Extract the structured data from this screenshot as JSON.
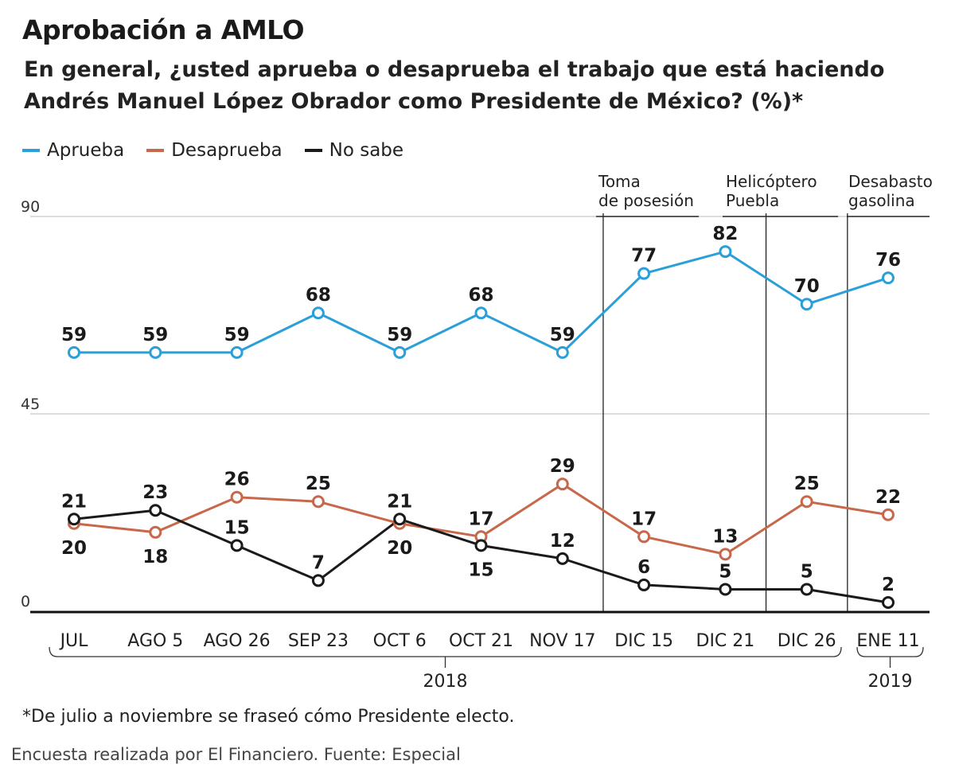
{
  "header": {
    "title": "Aprobación a AMLO",
    "subtitle_line1": "En general, ¿usted aprueba o desaprueba el trabajo que está haciendo",
    "subtitle_line2": "Andrés Manuel López Obrador como Presidente de México? (%)*"
  },
  "footer": {
    "footnote": "*De julio a noviembre se fraseó cómo Presidente electo.",
    "source": "Encuesta realizada por El Financiero. Fuente: Especial"
  },
  "colors": {
    "aprueba": "#2a9fd8",
    "desaprueba": "#c8684a",
    "nosabe": "#1a1a1a",
    "grid": "#bbbbbb"
  },
  "chart_data": {
    "type": "line",
    "categories": [
      "JUL",
      "AGO 5",
      "AGO 26",
      "SEP 23",
      "OCT 6",
      "OCT 21",
      "NOV 17",
      "DIC 15",
      "DIC 21",
      "DIC 26",
      "ENE 11"
    ],
    "series": [
      {
        "name": "Aprueba",
        "values": [
          59,
          59,
          59,
          68,
          59,
          68,
          59,
          77,
          82,
          70,
          76
        ]
      },
      {
        "name": "Desaprueba",
        "values": [
          20,
          18,
          26,
          25,
          20,
          17,
          29,
          17,
          13,
          25,
          22
        ]
      },
      {
        "name": "No sabe",
        "values": [
          21,
          23,
          15,
          7,
          21,
          15,
          12,
          6,
          5,
          5,
          2
        ]
      }
    ],
    "ylim": [
      0,
      90
    ],
    "yticks": [
      0,
      45,
      90
    ],
    "year_groups": [
      {
        "label": "2018",
        "from": "JUL",
        "to": "DIC 26"
      },
      {
        "label": "2019",
        "from": "ENE 11",
        "to": "ENE 11"
      }
    ],
    "events": [
      {
        "line1": "Toma",
        "line2": "de posesión"
      },
      {
        "line1": "Helicóptero",
        "line2": "Puebla"
      },
      {
        "line1": "Desabasto",
        "line2": "gasolina"
      }
    ],
    "label_positions": {
      "Aprueba": [
        "above",
        "above",
        "above",
        "above",
        "above",
        "above",
        "above",
        "above",
        "above",
        "above",
        "above"
      ],
      "Desaprueba": [
        "below",
        "below",
        "above",
        "above",
        "below",
        "above",
        "above",
        "above",
        "above",
        "above",
        "above"
      ],
      "No sabe": [
        "above",
        "above",
        "above",
        "above",
        "above",
        "below",
        "above",
        "above",
        "above",
        "above",
        "above"
      ]
    },
    "grid": true,
    "legend_position": "top-left"
  }
}
